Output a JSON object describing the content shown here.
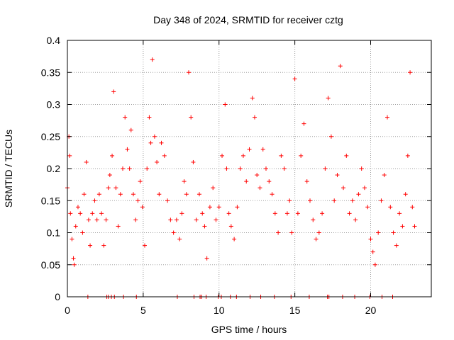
{
  "chart_data": {
    "type": "scatter",
    "title": "Day 348 of 2024, SRMTID for receiver cztg",
    "xlabel": "GPS time / hours",
    "ylabel": "SRMTID / TECUs",
    "xlim": [
      0,
      24
    ],
    "ylim": [
      0,
      0.4
    ],
    "xticks": [
      0,
      5,
      10,
      15,
      20
    ],
    "xtick_labels": [
      "0",
      "5",
      "10",
      "15",
      "20"
    ],
    "yticks": [
      0,
      0.05,
      0.1,
      0.15,
      0.2,
      0.25,
      0.3,
      0.35,
      0.4
    ],
    "ytick_labels": [
      "0",
      "0.05",
      "0.1",
      "0.15",
      "0.2",
      "0.25",
      "0.3",
      "0.35",
      "0.4"
    ],
    "grid": true,
    "marker": "+",
    "color": "#ff0000",
    "series": [
      {
        "name": "SRMTID",
        "x": [
          0.0,
          0.1,
          0.15,
          0.2,
          0.3,
          0.4,
          0.45,
          0.55,
          0.7,
          0.85,
          1.0,
          1.1,
          1.25,
          1.4,
          1.5,
          1.65,
          1.8,
          1.95,
          2.1,
          2.25,
          2.4,
          2.55,
          2.7,
          2.8,
          2.95,
          3.05,
          3.2,
          3.35,
          3.5,
          3.65,
          3.8,
          3.95,
          4.1,
          4.2,
          4.35,
          4.5,
          4.65,
          4.8,
          4.95,
          5.1,
          5.25,
          5.4,
          5.5,
          5.6,
          5.75,
          5.9,
          6.05,
          6.2,
          6.4,
          6.6,
          6.8,
          7.0,
          7.2,
          7.4,
          7.55,
          7.7,
          7.85,
          8.0,
          8.15,
          8.3,
          8.5,
          8.7,
          8.9,
          9.05,
          9.2,
          9.4,
          9.6,
          9.8,
          10.0,
          10.2,
          10.4,
          10.5,
          10.65,
          10.8,
          11.0,
          11.2,
          11.4,
          11.6,
          11.8,
          12.0,
          12.2,
          12.35,
          12.5,
          12.7,
          12.9,
          13.1,
          13.3,
          13.5,
          13.7,
          13.9,
          14.1,
          14.3,
          14.5,
          14.65,
          14.8,
          15.0,
          15.2,
          15.4,
          15.6,
          15.8,
          16.0,
          16.2,
          16.4,
          16.6,
          16.8,
          17.0,
          17.2,
          17.4,
          17.6,
          17.8,
          18.0,
          18.2,
          18.4,
          18.6,
          18.8,
          19.0,
          19.2,
          19.4,
          19.6,
          19.8,
          20.0,
          20.15,
          20.3,
          20.5,
          20.7,
          20.9,
          21.1,
          21.3,
          21.5,
          21.7,
          21.9,
          22.1,
          22.3,
          22.45,
          22.6,
          22.75,
          22.9
        ],
        "y": [
          0.17,
          0.25,
          0.22,
          0.13,
          0.09,
          0.06,
          0.05,
          0.11,
          0.14,
          0.13,
          0.1,
          0.16,
          0.21,
          0.12,
          0.08,
          0.13,
          0.15,
          0.12,
          0.16,
          0.13,
          0.08,
          0.12,
          0.17,
          0.19,
          0.22,
          0.32,
          0.17,
          0.11,
          0.16,
          0.2,
          0.28,
          0.23,
          0.2,
          0.26,
          0.16,
          0.12,
          0.15,
          0.18,
          0.14,
          0.08,
          0.2,
          0.28,
          0.24,
          0.37,
          0.25,
          0.21,
          0.16,
          0.24,
          0.22,
          0.15,
          0.12,
          0.1,
          0.12,
          0.09,
          0.13,
          0.18,
          0.16,
          0.35,
          0.28,
          0.21,
          0.12,
          0.16,
          0.13,
          0.11,
          0.06,
          0.14,
          0.17,
          0.12,
          0.14,
          0.22,
          0.3,
          0.2,
          0.13,
          0.11,
          0.09,
          0.14,
          0.2,
          0.22,
          0.18,
          0.23,
          0.31,
          0.28,
          0.19,
          0.17,
          0.23,
          0.2,
          0.18,
          0.16,
          0.13,
          0.1,
          0.22,
          0.2,
          0.13,
          0.15,
          0.1,
          0.34,
          0.13,
          0.22,
          0.27,
          0.18,
          0.15,
          0.12,
          0.09,
          0.1,
          0.13,
          0.2,
          0.31,
          0.25,
          0.15,
          0.19,
          0.36,
          0.17,
          0.22,
          0.13,
          0.15,
          0.12,
          0.16,
          0.2,
          0.17,
          0.14,
          0.09,
          0.07,
          0.05,
          0.1,
          0.15,
          0.19,
          0.28,
          0.14,
          0.1,
          0.08,
          0.13,
          0.11,
          0.16,
          0.22,
          0.35,
          0.14,
          0.11
        ],
        "zero_points_x": [
          1.35,
          2.6,
          2.7,
          2.9,
          3.1,
          3.7,
          4.55,
          7.25,
          8.35,
          8.75,
          8.85,
          9.15,
          9.95,
          10.15,
          10.75,
          11.15,
          12.05,
          12.75,
          13.65,
          14.75,
          15.95,
          17.15,
          17.25,
          18.15,
          18.95,
          19.95,
          20.75,
          21.45
        ]
      }
    ]
  }
}
